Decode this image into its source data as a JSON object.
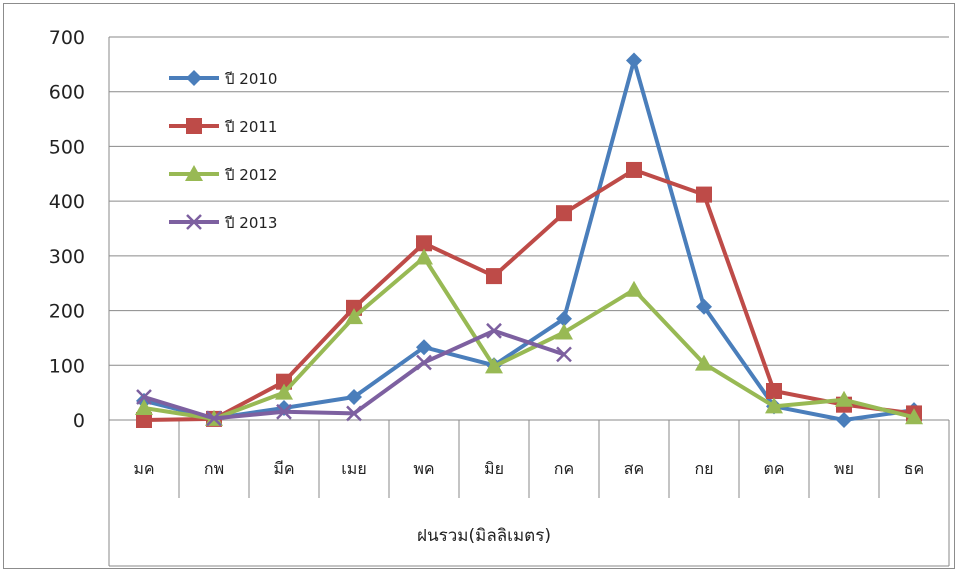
{
  "chart_data": {
    "type": "line",
    "title": "",
    "xlabel": "ฝนรวม(มิลลิเมตร)",
    "ylabel": "",
    "ylim": [
      0,
      700
    ],
    "yticks": [
      0,
      100,
      200,
      300,
      400,
      500,
      600,
      700
    ],
    "grid": "horizontal",
    "legend_position": "top-left",
    "categories": [
      "มค",
      "กพ",
      "มีค",
      "เมย",
      "พค",
      "มิย",
      "กค",
      "สค",
      "กย",
      "ตค",
      "พย",
      "ธค"
    ],
    "series": [
      {
        "name": "ปี 2010",
        "color": "#4a7ebb",
        "marker": "diamond",
        "values": [
          35,
          3,
          22,
          42,
          133,
          100,
          185,
          657,
          207,
          25,
          0,
          18
        ]
      },
      {
        "name": "ปี 2011",
        "color": "#be4b48",
        "marker": "square",
        "values": [
          0,
          2,
          70,
          205,
          323,
          263,
          378,
          457,
          412,
          53,
          28,
          12
        ]
      },
      {
        "name": "ปี 2012",
        "color": "#98b954",
        "marker": "triangle",
        "values": [
          22,
          2,
          50,
          188,
          297,
          98,
          160,
          238,
          103,
          25,
          37,
          5
        ]
      },
      {
        "name": "ปี 2013",
        "color": "#7d60a0",
        "marker": "x",
        "values": [
          42,
          3,
          15,
          12,
          105,
          163,
          120,
          null,
          null,
          null,
          null,
          null
        ]
      }
    ]
  }
}
